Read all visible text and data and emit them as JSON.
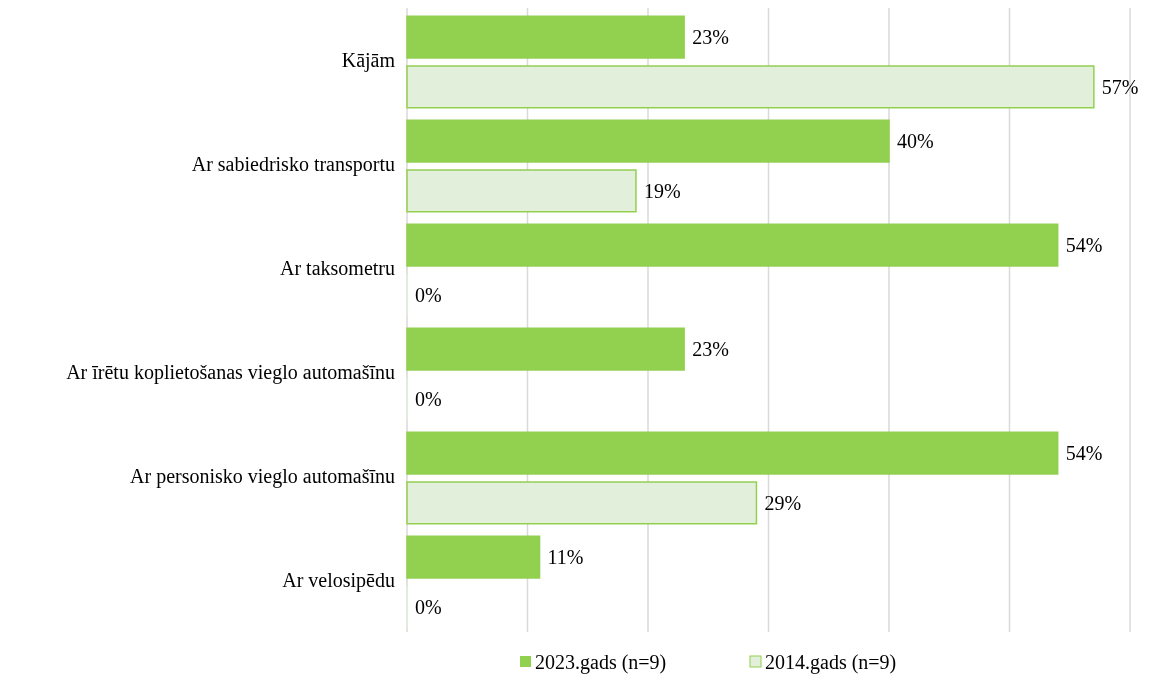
{
  "chart_data": {
    "type": "bar",
    "orientation": "horizontal",
    "categories": [
      "Kājām",
      "Ar sabiedrisko transportu",
      "Ar taksometru",
      "Ar īrētu koplietošanas vieglo automašīnu",
      "Ar personisko vieglo automašīnu",
      "Ar velosipēdu"
    ],
    "series": [
      {
        "name": "2023.gads (n=9)",
        "color": "#92d050",
        "values": [
          23,
          40,
          54,
          23,
          54,
          11
        ],
        "value_labels": [
          "23%",
          "40%",
          "54%",
          "23%",
          "54%",
          "11%"
        ]
      },
      {
        "name": "2014.gads (n=9)",
        "color": "#e2efda",
        "values": [
          57,
          19,
          0,
          0,
          29,
          0
        ],
        "value_labels": [
          "57%",
          "19%",
          "0%",
          "0%",
          "29%",
          "0%"
        ]
      }
    ],
    "xlim": [
      0,
      60
    ],
    "xticks": [
      {
        "value": 0,
        "label": null
      },
      {
        "value": 10,
        "label": null
      },
      {
        "value": 20,
        "label": null
      },
      {
        "value": 30,
        "label": null
      },
      {
        "value": 40,
        "label": null
      },
      {
        "value": 50,
        "label": null
      },
      {
        "value": 60,
        "label": null
      }
    ],
    "tick_labels": "y",
    "grid": "x",
    "legend": "bottom"
  }
}
